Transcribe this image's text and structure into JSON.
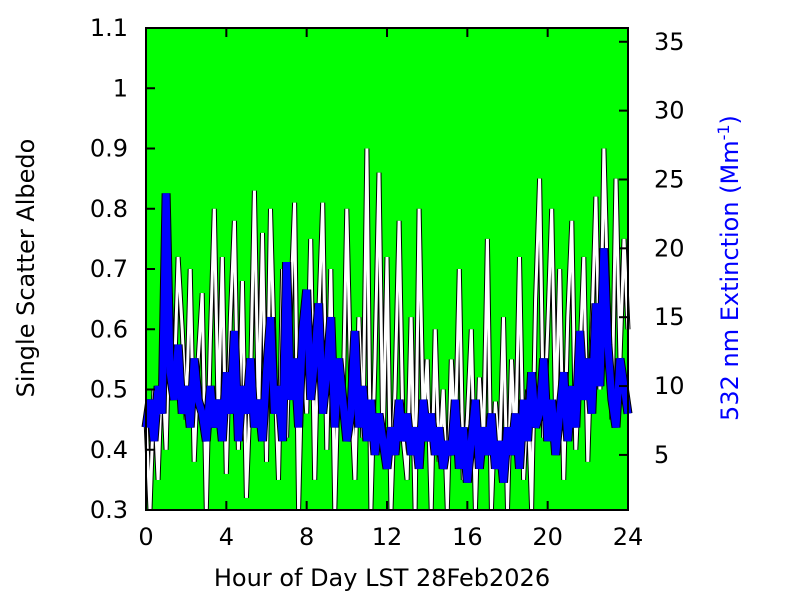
{
  "chart_data": {
    "type": "line",
    "xlabel": "Hour of Day LST 28Feb2026",
    "ylabel": "Single Scatter Albedo",
    "y2label": "532 nm Extinction (Mm",
    "y2label_sup": "-1",
    "y2label_close": ")",
    "xlim": [
      0,
      24
    ],
    "ylim": [
      0.3,
      1.1
    ],
    "y2lim": [
      1,
      36
    ],
    "xticks": [
      0,
      4,
      8,
      12,
      16,
      20,
      24
    ],
    "yticks": [
      0.3,
      0.4,
      0.5,
      0.6,
      0.7,
      0.8,
      0.9,
      1.0,
      1.1
    ],
    "ytick_labels": [
      "0.3",
      "0.4",
      "0.5",
      "0.6",
      "0.7",
      "0.8",
      "0.9",
      "1",
      "1.1"
    ],
    "y2ticks": [
      5,
      10,
      15,
      20,
      25,
      30,
      35
    ],
    "grid": false,
    "plot_background": "#00ff00",
    "series": [
      {
        "axis": "left",
        "color": "#ffffff",
        "outline": "#000000",
        "x": [
          0.0,
          0.2,
          0.4,
          0.6,
          0.8,
          1.0,
          1.2,
          1.4,
          1.6,
          1.8,
          2.0,
          2.2,
          2.4,
          2.6,
          2.8,
          3.0,
          3.2,
          3.4,
          3.6,
          3.8,
          4.0,
          4.2,
          4.4,
          4.6,
          4.8,
          5.0,
          5.2,
          5.4,
          5.6,
          5.8,
          6.0,
          6.2,
          6.4,
          6.6,
          6.8,
          7.0,
          7.2,
          7.4,
          7.6,
          7.8,
          8.0,
          8.2,
          8.4,
          8.6,
          8.8,
          9.0,
          9.2,
          9.4,
          9.6,
          9.8,
          10.0,
          10.2,
          10.4,
          10.6,
          10.8,
          11.0,
          11.2,
          11.4,
          11.6,
          11.8,
          12.0,
          12.2,
          12.4,
          12.6,
          12.8,
          13.0,
          13.2,
          13.4,
          13.6,
          13.8,
          14.0,
          14.2,
          14.4,
          14.6,
          14.8,
          15.0,
          15.2,
          15.4,
          15.6,
          15.8,
          16.0,
          16.2,
          16.4,
          16.6,
          16.8,
          17.0,
          17.2,
          17.4,
          17.6,
          17.8,
          18.0,
          18.2,
          18.4,
          18.6,
          18.8,
          19.0,
          19.2,
          19.4,
          19.6,
          19.8,
          20.0,
          20.2,
          20.4,
          20.6,
          20.8,
          21.0,
          21.2,
          21.4,
          21.6,
          21.8,
          22.0,
          22.2,
          22.4,
          22.6,
          22.8,
          23.0,
          23.2,
          23.4,
          23.6,
          23.8,
          24.0
        ],
        "y": [
          0.45,
          0.3,
          0.5,
          0.35,
          0.55,
          0.4,
          0.66,
          0.5,
          0.72,
          0.6,
          0.45,
          0.7,
          0.38,
          0.55,
          0.66,
          0.3,
          0.58,
          0.8,
          0.45,
          0.72,
          0.36,
          0.62,
          0.78,
          0.4,
          0.68,
          0.32,
          0.5,
          0.83,
          0.45,
          0.76,
          0.38,
          0.8,
          0.55,
          0.35,
          0.7,
          0.42,
          0.64,
          0.81,
          0.3,
          0.58,
          0.46,
          0.75,
          0.35,
          0.62,
          0.81,
          0.4,
          0.7,
          0.3,
          0.55,
          0.45,
          0.8,
          0.5,
          0.35,
          0.62,
          0.42,
          0.9,
          0.3,
          0.55,
          0.86,
          0.4,
          0.72,
          0.3,
          0.5,
          0.78,
          0.42,
          0.35,
          0.62,
          0.3,
          0.8,
          0.45,
          0.55,
          0.3,
          0.6,
          0.38,
          0.5,
          0.3,
          0.55,
          0.42,
          0.7,
          0.35,
          0.45,
          0.6,
          0.3,
          0.52,
          0.4,
          0.75,
          0.3,
          0.48,
          0.38,
          0.62,
          0.3,
          0.55,
          0.4,
          0.72,
          0.35,
          0.5,
          0.3,
          0.65,
          0.85,
          0.42,
          0.6,
          0.8,
          0.45,
          0.7,
          0.35,
          0.62,
          0.78,
          0.4,
          0.55,
          0.72,
          0.38,
          0.6,
          0.82,
          0.5,
          0.9,
          0.65,
          0.45,
          0.85,
          0.55,
          0.75,
          0.6
        ]
      },
      {
        "axis": "right",
        "color": "#0000ff",
        "outline": "#000000",
        "x": [
          0.0,
          0.2,
          0.4,
          0.6,
          0.8,
          1.0,
          1.2,
          1.4,
          1.6,
          1.8,
          2.0,
          2.2,
          2.4,
          2.6,
          2.8,
          3.0,
          3.2,
          3.4,
          3.6,
          3.8,
          4.0,
          4.2,
          4.4,
          4.6,
          4.8,
          5.0,
          5.2,
          5.4,
          5.6,
          5.8,
          6.0,
          6.2,
          6.4,
          6.6,
          6.8,
          7.0,
          7.2,
          7.4,
          7.6,
          7.8,
          8.0,
          8.2,
          8.4,
          8.6,
          8.8,
          9.0,
          9.2,
          9.4,
          9.6,
          9.8,
          10.0,
          10.2,
          10.4,
          10.6,
          10.8,
          11.0,
          11.2,
          11.4,
          11.6,
          11.8,
          12.0,
          12.2,
          12.4,
          12.6,
          12.8,
          13.0,
          13.2,
          13.4,
          13.6,
          13.8,
          14.0,
          14.2,
          14.4,
          14.6,
          14.8,
          15.0,
          15.2,
          15.4,
          15.6,
          15.8,
          16.0,
          16.2,
          16.4,
          16.6,
          16.8,
          17.0,
          17.2,
          17.4,
          17.6,
          17.8,
          18.0,
          18.2,
          18.4,
          18.6,
          18.8,
          19.0,
          19.2,
          19.4,
          19.6,
          19.8,
          20.0,
          20.2,
          20.4,
          20.6,
          20.8,
          21.0,
          21.2,
          21.4,
          21.6,
          21.8,
          22.0,
          22.2,
          22.4,
          22.6,
          22.8,
          23.0,
          23.2,
          23.4,
          23.6,
          23.8,
          24.0
        ],
        "y": [
          7,
          9,
          6,
          10,
          8,
          24,
          11,
          9,
          13,
          8,
          10,
          7,
          12,
          9,
          8,
          6,
          10,
          7,
          9,
          6,
          11,
          8,
          14,
          6,
          10,
          8,
          12,
          7,
          9,
          6,
          11,
          15,
          8,
          10,
          6,
          19,
          9,
          12,
          7,
          14,
          17,
          9,
          12,
          16,
          8,
          11,
          15,
          7,
          12,
          9,
          6,
          8,
          14,
          7,
          10,
          6,
          9,
          5,
          8,
          6,
          4,
          7,
          5,
          9,
          6,
          8,
          5,
          7,
          4,
          9,
          6,
          8,
          5,
          7,
          4,
          6,
          5,
          9,
          4,
          7,
          3,
          6,
          9,
          4,
          7,
          5,
          8,
          4,
          6,
          3,
          7,
          5,
          8,
          4,
          9,
          6,
          11,
          7,
          8,
          12,
          6,
          9,
          5,
          8,
          11,
          6,
          10,
          7,
          14,
          9,
          12,
          8,
          16,
          10,
          20,
          13,
          9,
          7,
          12,
          10,
          8
        ]
      }
    ]
  }
}
